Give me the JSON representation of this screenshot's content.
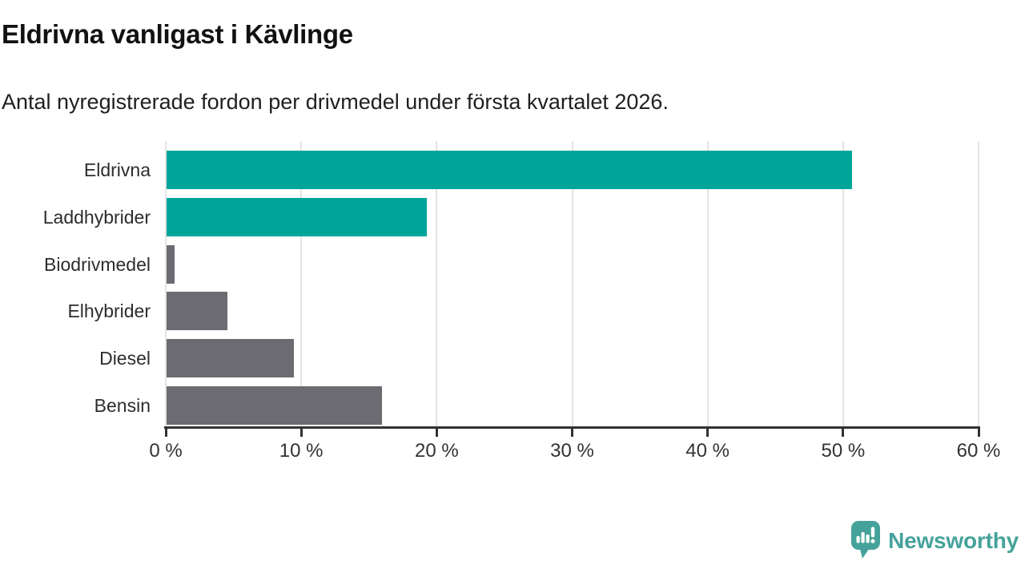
{
  "chart_data": {
    "type": "bar",
    "orientation": "horizontal",
    "title": "Eldrivna vanligast i Kävlinge",
    "subtitle": "Antal nyregistrerade fordon per drivmedel under första kvartalet 2026.",
    "categories": [
      "Eldrivna",
      "Laddhybrider",
      "Biodrivmedel",
      "Elhybrider",
      "Diesel",
      "Bensin"
    ],
    "values": [
      50.6,
      19.2,
      0.6,
      4.5,
      9.4,
      15.9
    ],
    "unit": "%",
    "bar_colors": [
      "#00A59A",
      "#00A59A",
      "#6C6B72",
      "#6C6B72",
      "#6C6B72",
      "#6C6B72"
    ],
    "xlabel": "",
    "ylabel": "",
    "xlim": [
      0,
      60
    ],
    "x_ticks": [
      0,
      10,
      20,
      30,
      40,
      50,
      60
    ],
    "x_tick_labels": [
      "0 %",
      "10 %",
      "20 %",
      "30 %",
      "40 %",
      "50 %",
      "60 %"
    ],
    "grid": true,
    "legend": false
  },
  "colors": {
    "accent_teal": "#00A59A",
    "neutral_gray": "#6C6B72",
    "axis": "#323232",
    "gridline": "#e4e4e4",
    "title_text": "#111111"
  },
  "branding": {
    "logo_text": "Newsworthy",
    "logo_icon": "newsworthy-chart-bubble-icon",
    "logo_color": "#45a29a"
  }
}
